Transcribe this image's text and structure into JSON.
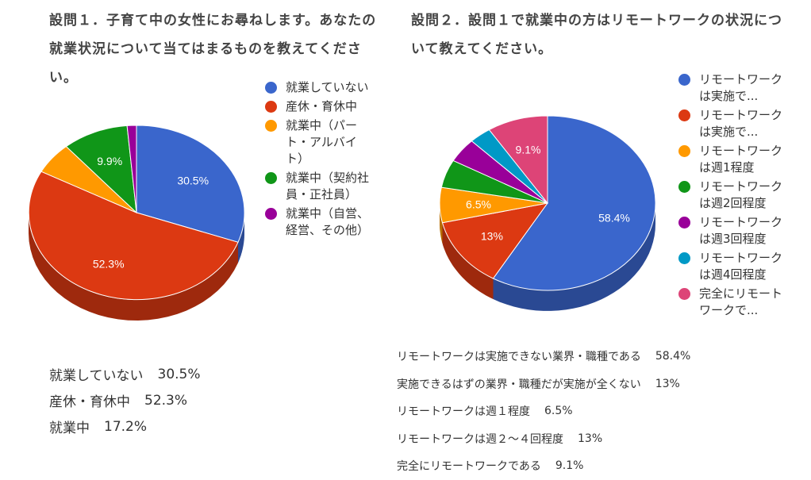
{
  "q1": {
    "title": "設問１．子育て中の女性にお尋ねします。あなたの就業状況について当てはまるものを教えてください。",
    "summary": [
      {
        "label": "就業していない",
        "value": "30.5%"
      },
      {
        "label": "産休・育休中",
        "value": "52.3%"
      },
      {
        "label": "就業中",
        "value": "17.2%"
      }
    ]
  },
  "q2": {
    "title": "設問２．設問１で就業中の方はリモートワークの状況について教えてください。",
    "summary": [
      {
        "label": "リモートワークは実施できない業界・職種である",
        "value": "58.4%"
      },
      {
        "label": "実施できるはずの業界・職種だが実施が全くない",
        "value": "13%"
      },
      {
        "label": "リモートワークは週１程度",
        "value": "6.5%"
      },
      {
        "label": "リモートワークは週２〜４回程度",
        "value": "13%"
      },
      {
        "label": "完全にリモートワークである",
        "value": "9.1%"
      }
    ]
  },
  "chart_data": [
    {
      "type": "pie",
      "title": "",
      "legend_position": "right",
      "series": [
        {
          "name": "就業していない",
          "legend": "就業していない",
          "value": 30.5,
          "label": "30.5%",
          "color": "#3a66cc"
        },
        {
          "name": "産休・育休中",
          "legend": "産休・育休中",
          "value": 52.3,
          "label": "52.3%",
          "color": "#dc3912"
        },
        {
          "name": "就業中（パート・アルバイト）",
          "legend": "就業中（パート・アルバイト）",
          "value": 5.9,
          "label": "",
          "color": "#ff9900"
        },
        {
          "name": "就業中（契約社員・正社員）",
          "legend": "就業中（契約社員・正社員）",
          "value": 9.9,
          "label": "9.9%",
          "color": "#109618"
        },
        {
          "name": "就業中（自営、経営、その他）",
          "legend": "就業中（自営、経営、その他）",
          "value": 1.4,
          "label": "",
          "color": "#990099"
        }
      ]
    },
    {
      "type": "pie",
      "title": "",
      "legend_position": "right",
      "series": [
        {
          "name": "リモートワークは実施できない業界・職種である",
          "legend": "リモートワークは実施で...",
          "value": 58.4,
          "label": "58.4%",
          "color": "#3a66cc"
        },
        {
          "name": "リモートワークは実施できるはずの業界・職種だが実施が全くない",
          "legend": "リモートワークは実施で...",
          "value": 13,
          "label": "13%",
          "color": "#dc3912"
        },
        {
          "name": "リモートワークは週1程度",
          "legend": "リモートワークは週1程度",
          "value": 6.5,
          "label": "6.5%",
          "color": "#ff9900"
        },
        {
          "name": "リモートワークは週2回程度",
          "legend": "リモートワークは週2回程度",
          "value": 5.2,
          "label": "",
          "color": "#109618"
        },
        {
          "name": "リモートワークは週3回程度",
          "legend": "リモートワークは週3回程度",
          "value": 4.5,
          "label": "",
          "color": "#990099"
        },
        {
          "name": "リモートワークは週4回程度",
          "legend": "リモートワークは週4回程度",
          "value": 3.3,
          "label": "",
          "color": "#0099c6"
        },
        {
          "name": "完全にリモートワークで...",
          "legend": "完全にリモートワークで...",
          "value": 9.1,
          "label": "9.1%",
          "color": "#dd4477"
        }
      ]
    }
  ]
}
